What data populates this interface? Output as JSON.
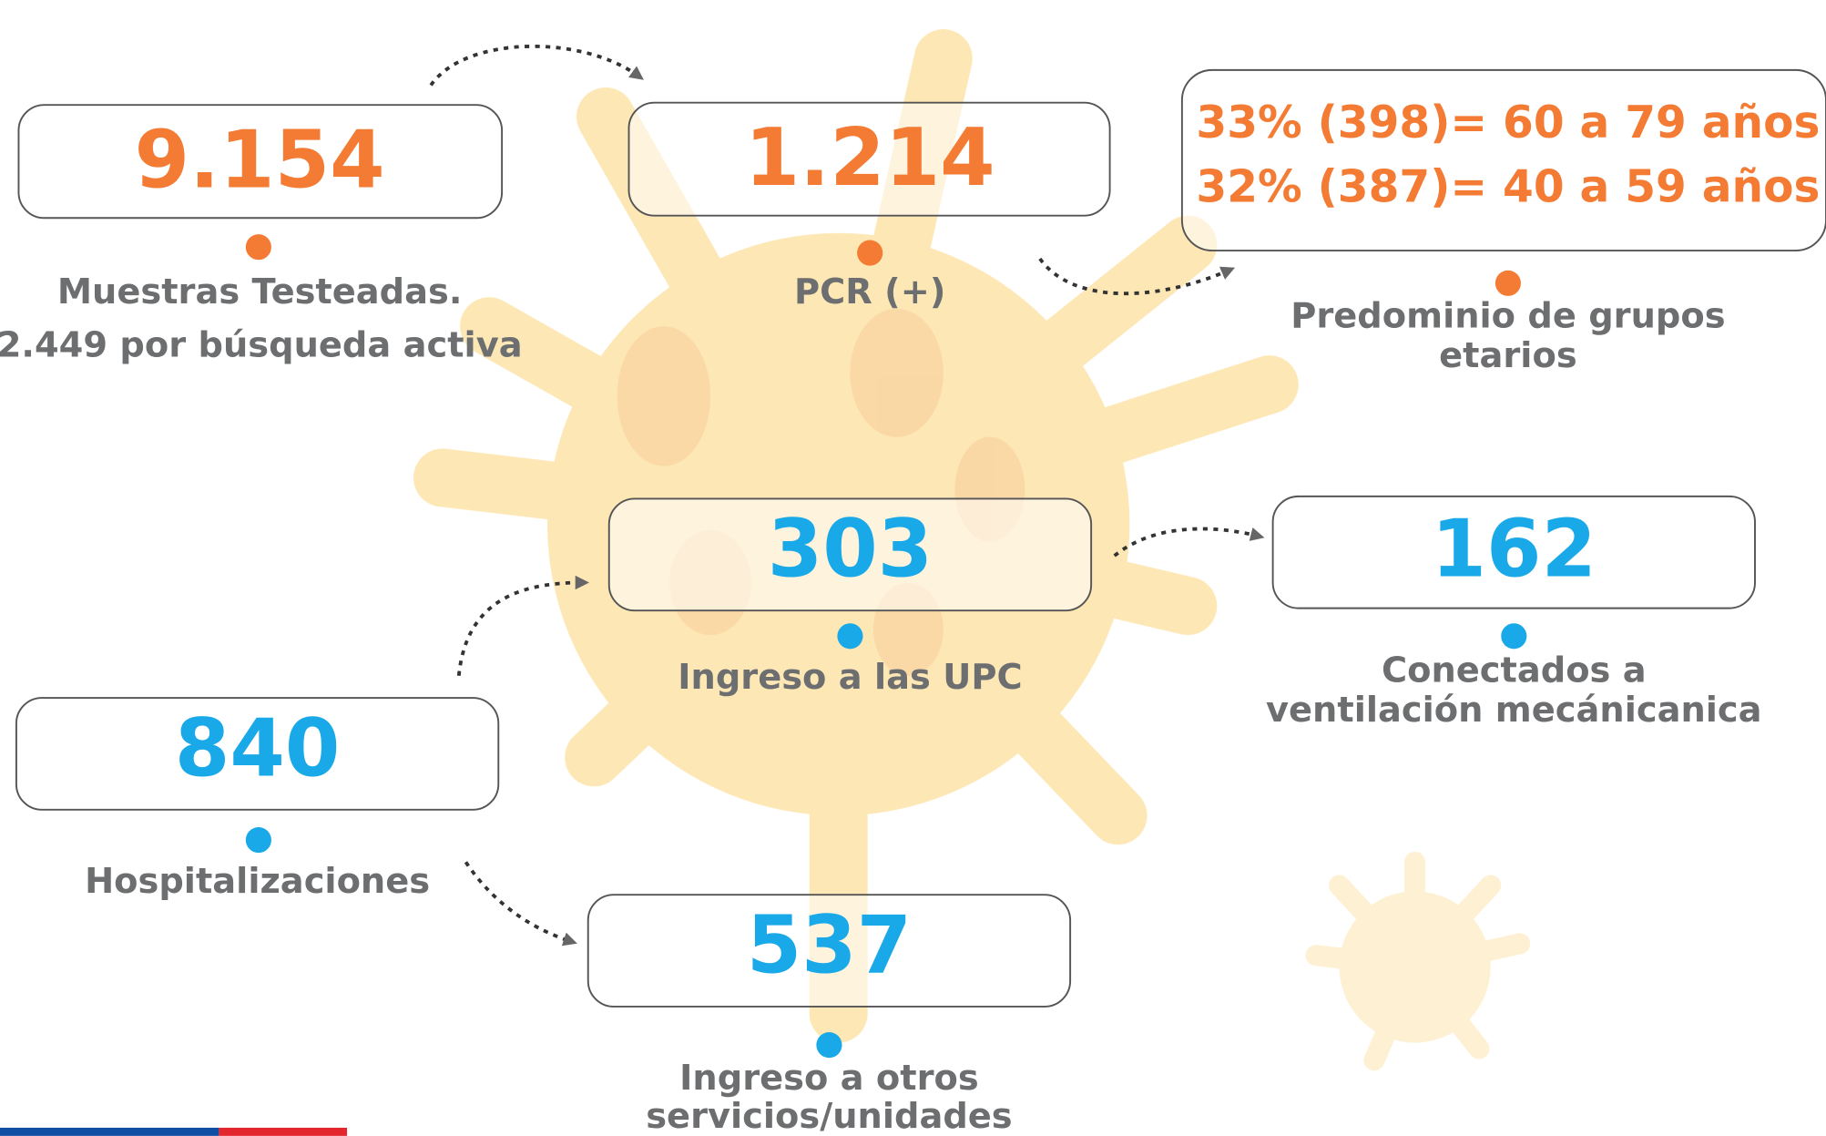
{
  "cards": [
    {
      "value": [
        "9.154"
      ],
      "label": [
        "Muestras Testeadas.",
        "2.449 por búsqueda activa"
      ]
    },
    {
      "value": [
        "1.214"
      ],
      "label": [
        "PCR (+)"
      ]
    },
    {
      "value": [
        "33% (398)= 60 a 79 años",
        "32% (387)= 40 a 59 años"
      ],
      "label": [
        "Predominio de grupos",
        "etarios"
      ]
    },
    {
      "value": [
        "303"
      ],
      "label": [
        "Ingreso a las UPC"
      ]
    },
    {
      "value": [
        "162"
      ],
      "label": [
        "Conectados a",
        "ventilación mecánicanica"
      ]
    },
    {
      "value": [
        "840"
      ],
      "label": [
        "Hospitalizaciones"
      ]
    },
    {
      "value": [
        "537"
      ],
      "label": [
        "Ingreso a otros",
        "servicios/unidades"
      ]
    }
  ]
}
